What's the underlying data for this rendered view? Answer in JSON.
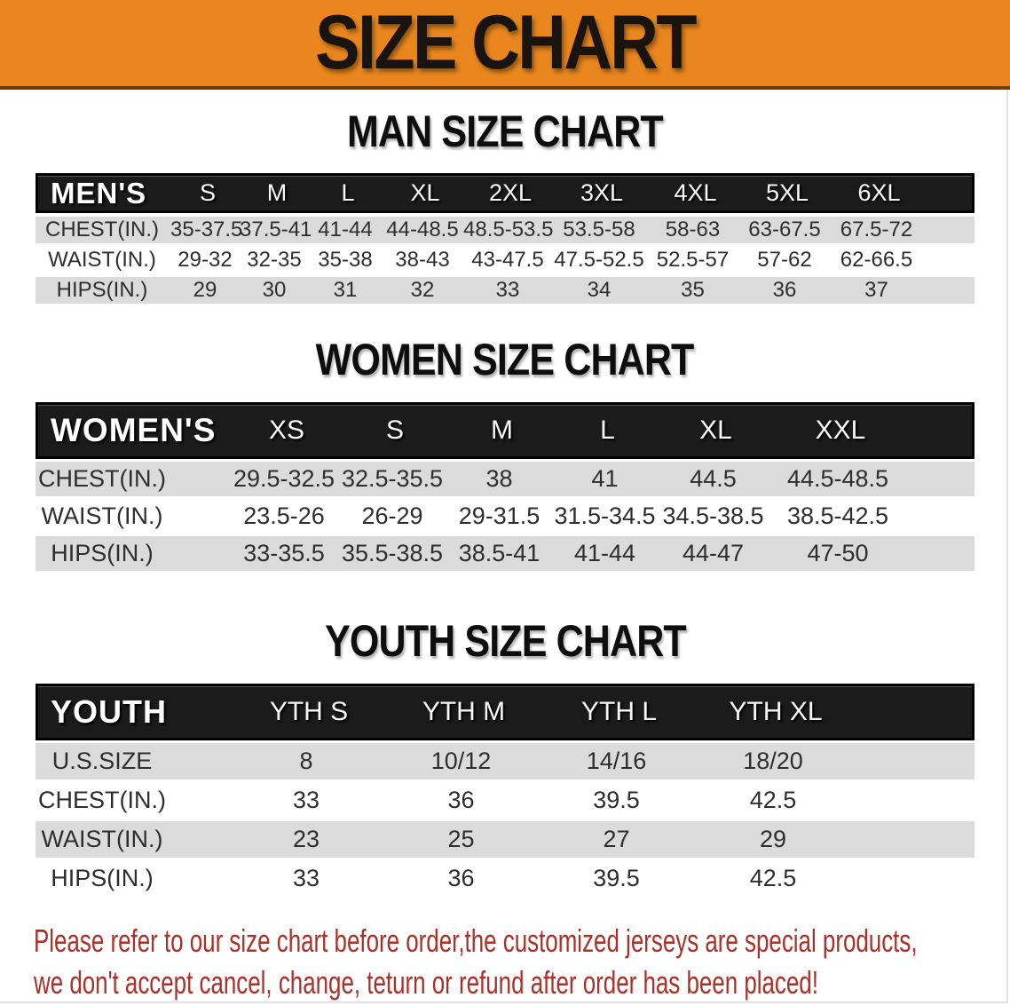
{
  "banner": {
    "title": "SIZE CHART"
  },
  "sections": [
    {
      "id": "men",
      "title": "MAN SIZE CHART",
      "table": {
        "corner_label": "MEN'S",
        "columns": [
          "S",
          "M",
          "L",
          "XL",
          "2XL",
          "3XL",
          "4XL",
          "5XL",
          "6XL"
        ],
        "rows": [
          {
            "label": "CHEST(IN.)",
            "values": [
              "35-37.5",
              "37.5-41",
              "41-44",
              "44-48.5",
              "48.5-53.5",
              "53.5-58",
              "58-63",
              "63-67.5",
              "67.5-72"
            ]
          },
          {
            "label": "WAIST(IN.)",
            "values": [
              "29-32",
              "32-35",
              "35-38",
              "38-43",
              "43-47.5",
              "47.5-52.5",
              "52.5-57",
              "57-62",
              "62-66.5"
            ]
          },
          {
            "label": "HIPS(IN.)",
            "values": [
              "29",
              "30",
              "31",
              "32",
              "33",
              "34",
              "35",
              "36",
              "37"
            ]
          }
        ]
      }
    },
    {
      "id": "women",
      "title": "WOMEN SIZE CHART",
      "table": {
        "corner_label": "WOMEN'S",
        "columns": [
          "XS",
          "S",
          "M",
          "L",
          "XL",
          "XXL"
        ],
        "rows": [
          {
            "label": "CHEST(IN.)",
            "values": [
              "29.5-32.5",
              "32.5-35.5",
              "38",
              "41",
              "44.5",
              "44.5-48.5"
            ]
          },
          {
            "label": "WAIST(IN.)",
            "values": [
              "23.5-26",
              "26-29",
              "29-31.5",
              "31.5-34.5",
              "34.5-38.5",
              "38.5-42.5"
            ]
          },
          {
            "label": "HIPS(IN.)",
            "values": [
              "33-35.5",
              "35.5-38.5",
              "38.5-41",
              "41-44",
              "44-47",
              "47-50"
            ]
          }
        ]
      }
    },
    {
      "id": "youth",
      "title": "YOUTH SIZE CHART",
      "table": {
        "corner_label": "YOUTH",
        "columns": [
          "YTH S",
          "YTH M",
          "YTH L",
          "YTH XL"
        ],
        "rows": [
          {
            "label": "U.S.SIZE",
            "values": [
              "8",
              "10/12",
              "14/16",
              "18/20"
            ]
          },
          {
            "label": "CHEST(IN.)",
            "values": [
              "33",
              "36",
              "39.5",
              "42.5"
            ]
          },
          {
            "label": "WAIST(IN.)",
            "values": [
              "23",
              "25",
              "27",
              "29"
            ]
          },
          {
            "label": "HIPS(IN.)",
            "values": [
              "33",
              "36",
              "39.5",
              "42.5"
            ]
          }
        ]
      }
    }
  ],
  "footer": {
    "lines": [
      "Please refer to our size chart before order,the customized jerseys are special products,",
      "we don't accept cancel, change, teturn or refund after order has been placed!"
    ]
  },
  "colors": {
    "banner_bg": "#E9871E",
    "banner_underline": "#6B3C14",
    "table_header_bg": "#1B1B1B",
    "row_shade": "#DBDBDB",
    "table_text": "#2E2E2E",
    "footer_red": "#A93129"
  }
}
